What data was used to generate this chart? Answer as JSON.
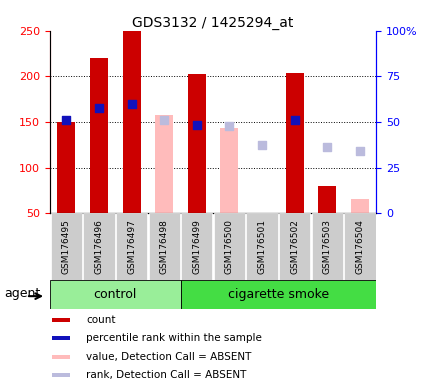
{
  "title": "GDS3132 / 1425294_at",
  "samples": [
    "GSM176495",
    "GSM176496",
    "GSM176497",
    "GSM176498",
    "GSM176499",
    "GSM176500",
    "GSM176501",
    "GSM176502",
    "GSM176503",
    "GSM176504"
  ],
  "count_values": [
    150,
    220,
    250,
    null,
    203,
    null,
    null,
    204,
    80,
    null
  ],
  "count_absent": [
    null,
    null,
    null,
    158,
    null,
    143,
    null,
    null,
    null,
    65
  ],
  "rank_present": [
    152,
    165,
    170,
    null,
    147,
    null,
    null,
    152,
    null,
    null
  ],
  "rank_absent": [
    null,
    null,
    null,
    152,
    null,
    145,
    125,
    null,
    123,
    118
  ],
  "ylim_left": [
    50,
    250
  ],
  "ylim_right": [
    0,
    100
  ],
  "left_ticks": [
    50,
    100,
    150,
    200,
    250
  ],
  "right_ticks": [
    0,
    25,
    50,
    75,
    100
  ],
  "right_tick_labels": [
    "0",
    "25",
    "50",
    "75",
    "100%"
  ],
  "group_control_count": 4,
  "group_smoke_count": 6,
  "control_label": "control",
  "smoke_label": "cigarette smoke",
  "agent_label": "agent",
  "legend_items": [
    {
      "color": "#cc0000",
      "label": "count"
    },
    {
      "color": "#1111bb",
      "label": "percentile rank within the sample"
    },
    {
      "color": "#ffbbbb",
      "label": "value, Detection Call = ABSENT"
    },
    {
      "color": "#bbbbdd",
      "label": "rank, Detection Call = ABSENT"
    }
  ],
  "count_color": "#cc0000",
  "rank_color": "#1111bb",
  "absent_value_color": "#ffbbbb",
  "absent_rank_color": "#bbbbdd",
  "control_bg": "#99ee99",
  "smoke_bg": "#44dd44",
  "tick_bg": "#cccccc",
  "bar_width": 0.55
}
